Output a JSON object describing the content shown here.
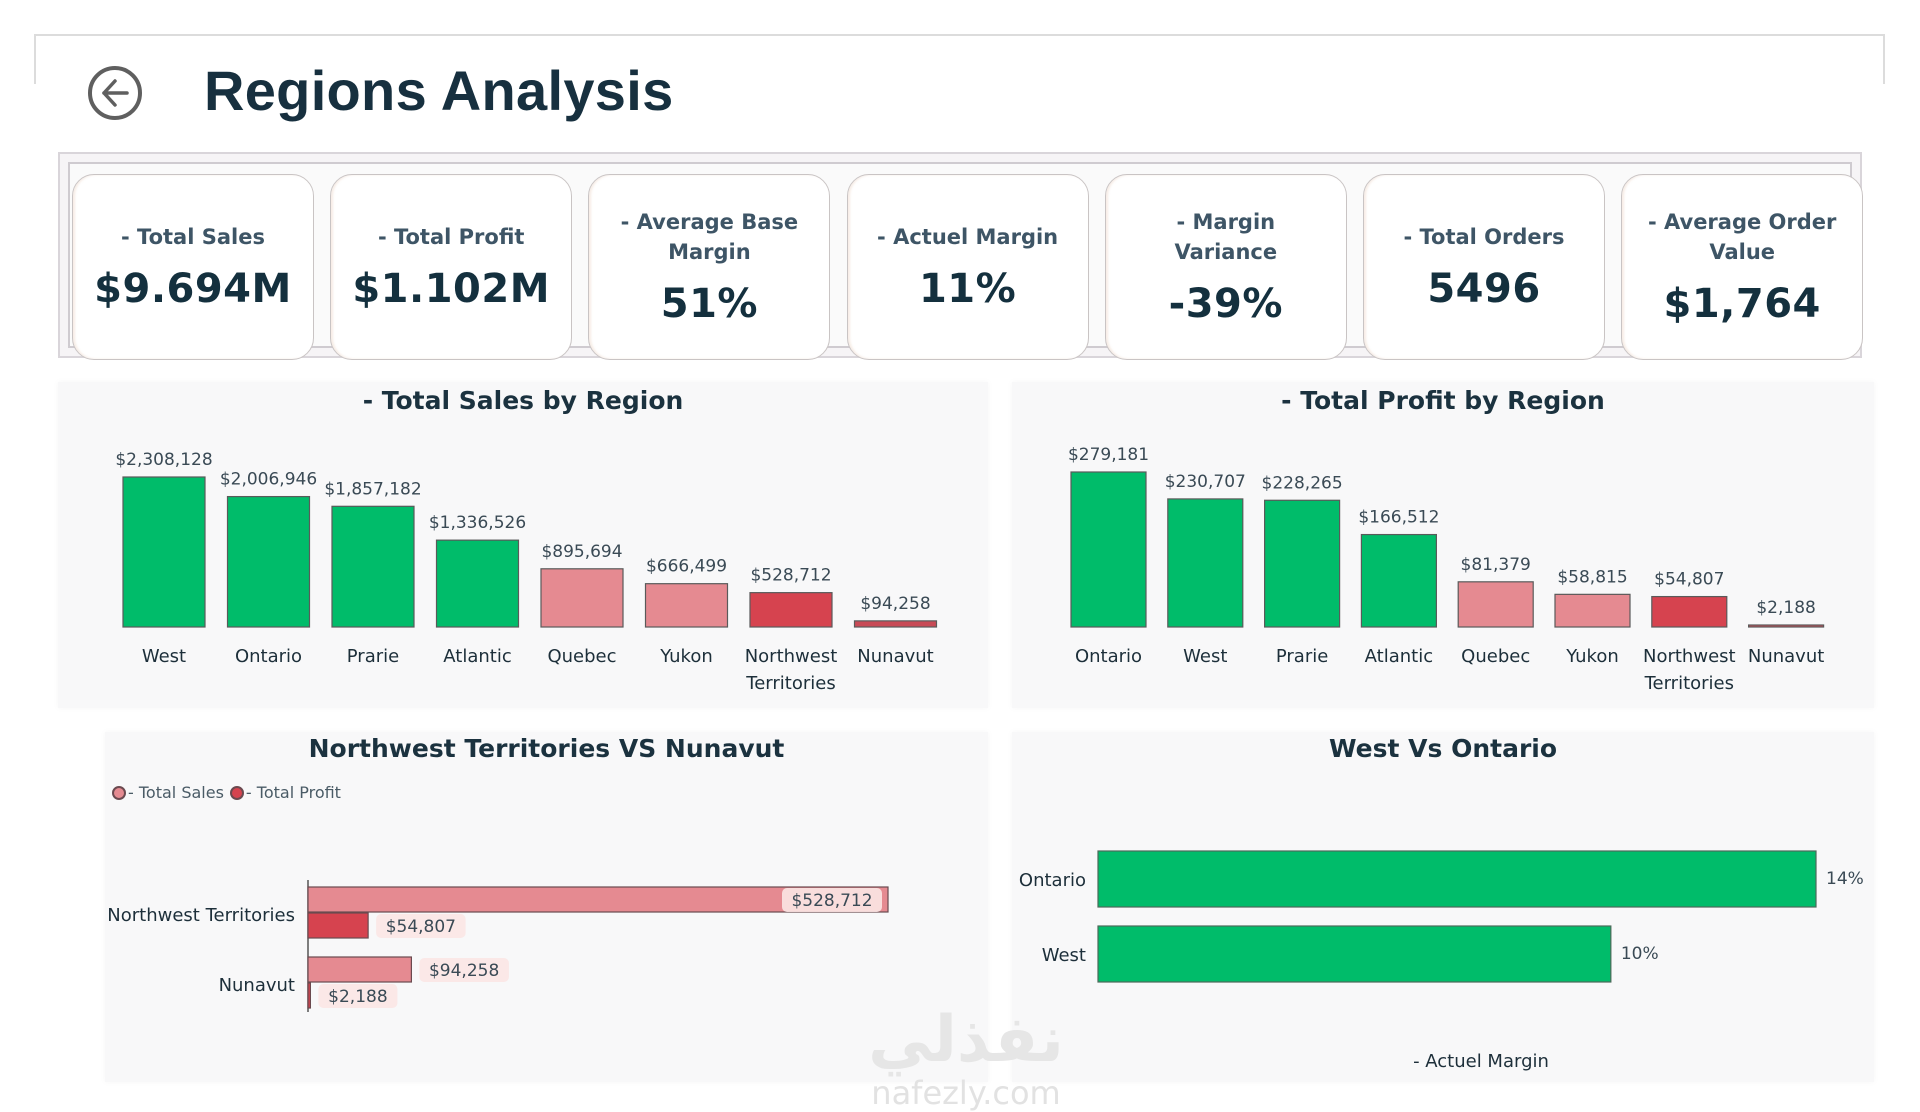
{
  "header": {
    "title": "Regions Analysis",
    "back_icon": "arrow-left-circle-icon"
  },
  "kpis": [
    {
      "label": "- Total Sales",
      "value": "$9.694M"
    },
    {
      "label": "- Total Profit",
      "value": "$1.102M"
    },
    {
      "label": "- Average Base Margin",
      "value": "51%"
    },
    {
      "label": "- Actuel Margin",
      "value": "11%"
    },
    {
      "label": "- Margin Variance",
      "value": "-39%"
    },
    {
      "label": "- Total Orders",
      "value": "5496"
    },
    {
      "label": "- Average Order Value",
      "value": "$1,764"
    }
  ],
  "colors": {
    "green": "#00BC6A",
    "pink": "#E58A91",
    "red": "#D6434F",
    "dark_red": "#C84A56",
    "title": "#1b323f"
  },
  "watermark": {
    "arabic": "نفذلي",
    "latin": "nafezly.com"
  },
  "chart_data": [
    {
      "id": "sales_by_region",
      "type": "bar",
      "title": "- Total Sales by Region",
      "categories": [
        "West",
        "Ontario",
        "Prarie",
        "Atlantic",
        "Quebec",
        "Yukon",
        "Northwest Territories",
        "Nunavut"
      ],
      "values": [
        2308128,
        2006946,
        1857182,
        1336526,
        895694,
        666499,
        528712,
        94258
      ],
      "labels": [
        "$2,308,128",
        "$2,006,946",
        "$1,857,182",
        "$1,336,526",
        "$895,694",
        "$666,499",
        "$528,712",
        "$94,258"
      ],
      "bar_colors": [
        "green",
        "green",
        "green",
        "green",
        "pink",
        "pink",
        "red",
        "dark_red"
      ],
      "xlabel": "",
      "ylabel": "",
      "ylim": [
        0,
        2308128
      ],
      "grid": false
    },
    {
      "id": "profit_by_region",
      "type": "bar",
      "title": "- Total Profit by Region",
      "categories": [
        "Ontario",
        "West",
        "Prarie",
        "Atlantic",
        "Quebec",
        "Yukon",
        "Northwest Territories",
        "Nunavut"
      ],
      "values": [
        279181,
        230707,
        228265,
        166512,
        81379,
        58815,
        54807,
        2188
      ],
      "labels": [
        "$279,181",
        "$230,707",
        "$228,265",
        "$166,512",
        "$81,379",
        "$58,815",
        "$54,807",
        "$2,188"
      ],
      "bar_colors": [
        "green",
        "green",
        "green",
        "green",
        "pink",
        "pink",
        "red",
        "dark_red"
      ],
      "xlabel": "",
      "ylabel": "",
      "ylim": [
        0,
        279181
      ],
      "grid": false
    },
    {
      "id": "nwt_vs_nunavut",
      "type": "bar",
      "orientation": "horizontal",
      "title": "Northwest Territories VS Nunavut",
      "categories": [
        "Northwest Territories",
        "Nunavut"
      ],
      "legend": {
        "position": "top-left",
        "entries": [
          "- Total Sales",
          "- Total Profit"
        ]
      },
      "series": [
        {
          "name": "- Total Sales",
          "color": "pink",
          "values": [
            528712,
            94258
          ],
          "labels": [
            "$528,712",
            "$94,258"
          ]
        },
        {
          "name": "- Total Profit",
          "color": "red",
          "values": [
            54807,
            2188
          ],
          "labels": [
            "$54,807",
            "$2,188"
          ]
        }
      ],
      "xlim": [
        0,
        528712
      ],
      "grid": false
    },
    {
      "id": "west_vs_ontario",
      "type": "bar",
      "orientation": "horizontal",
      "title": "West Vs Ontario",
      "categories": [
        "Ontario",
        "West"
      ],
      "values": [
        14,
        10
      ],
      "labels": [
        "14%",
        "10%"
      ],
      "xlabel": "- Actuel Margin",
      "xlim": [
        0,
        14
      ],
      "grid": false
    }
  ]
}
